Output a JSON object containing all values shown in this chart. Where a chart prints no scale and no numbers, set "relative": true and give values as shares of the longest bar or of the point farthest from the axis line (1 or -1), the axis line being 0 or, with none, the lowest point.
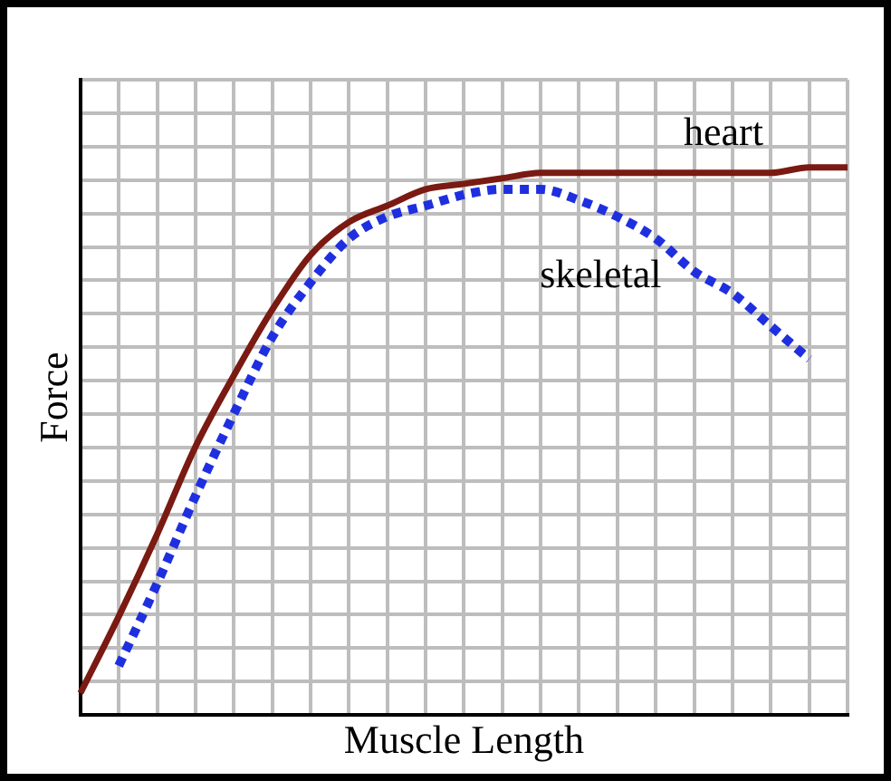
{
  "chart_data": {
    "type": "line",
    "xlabel": "Muscle Length",
    "ylabel": "Force",
    "relative": true,
    "grid": true,
    "legend": false,
    "marker": "none",
    "categories": [
      null,
      null,
      null,
      null,
      null,
      null,
      null,
      null,
      null,
      null,
      null,
      null,
      null,
      null,
      null,
      null,
      null,
      null,
      null,
      null,
      null
    ],
    "series": [
      {
        "name": "heart",
        "color": "#7a1a12",
        "line_style": "solid",
        "values": [
          0.04,
          0.18,
          0.33,
          0.49,
          0.62,
          0.74,
          0.84,
          0.9,
          0.93,
          0.96,
          0.97,
          0.98,
          0.99,
          0.99,
          0.99,
          0.99,
          0.99,
          0.99,
          0.99,
          1.0,
          1.0
        ]
      },
      {
        "name": "skeletal",
        "color": "#1f2fe0",
        "line_style": "dotted",
        "values": [
          null,
          0.09,
          0.24,
          0.4,
          0.55,
          0.69,
          0.79,
          0.87,
          0.91,
          0.93,
          0.95,
          0.96,
          0.96,
          0.94,
          0.91,
          0.87,
          0.81,
          0.77,
          0.71,
          0.65,
          null
        ]
      }
    ]
  }
}
